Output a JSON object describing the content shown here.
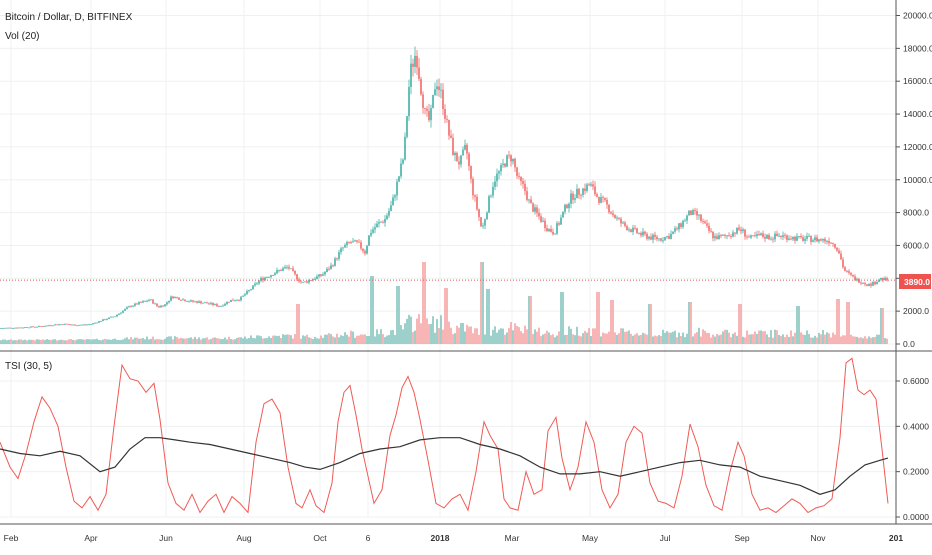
{
  "chart_data": [
    {
      "type": "candlestick",
      "title": "Bitcoin / Dollar, D, BITFINEX",
      "indicator_label": "Vol (20)",
      "y_ticks": [
        "20000.0",
        "18000.0",
        "16000.0",
        "14000.0",
        "12000.0",
        "10000.0",
        "8000.0",
        "6000.0",
        "4000.0",
        "2000.0",
        "0.0"
      ],
      "ylim": [
        0,
        20000
      ],
      "last_price": "3890.0",
      "colors": {
        "up": "#26a69a",
        "down": "#ef5350",
        "up_vol": "#85c5be",
        "down_vol": "#f5a3a3",
        "price_line": "#ef5350"
      },
      "close_path": [
        [
          0,
          965
        ],
        [
          20,
          1000
        ],
        [
          40,
          1070
        ],
        [
          55,
          1180
        ],
        [
          65,
          1210
        ],
        [
          75,
          1150
        ],
        [
          90,
          1190
        ],
        [
          100,
          1400
        ],
        [
          115,
          1700
        ],
        [
          130,
          2300
        ],
        [
          140,
          2500
        ],
        [
          150,
          2700
        ],
        [
          158,
          2250
        ],
        [
          165,
          2400
        ],
        [
          172,
          2900
        ],
        [
          180,
          2750
        ],
        [
          190,
          2600
        ],
        [
          200,
          2550
        ],
        [
          210,
          2450
        ],
        [
          220,
          2300
        ],
        [
          230,
          2650
        ],
        [
          240,
          2750
        ],
        [
          250,
          3300
        ],
        [
          260,
          3900
        ],
        [
          270,
          4200
        ],
        [
          280,
          4500
        ],
        [
          288,
          4700
        ],
        [
          296,
          4100
        ],
        [
          302,
          3700
        ],
        [
          312,
          3950
        ],
        [
          322,
          4200
        ],
        [
          332,
          4800
        ],
        [
          342,
          5800
        ],
        [
          350,
          6200
        ],
        [
          358,
          6100
        ],
        [
          365,
          5600
        ],
        [
          370,
          6800
        ],
        [
          378,
          7300
        ],
        [
          385,
          7600
        ],
        [
          392,
          8500
        ],
        [
          398,
          10000
        ],
        [
          404,
          11500
        ],
        [
          410,
          16500
        ],
        [
          416,
          17800
        ],
        [
          420,
          16000
        ],
        [
          425,
          14000
        ],
        [
          430,
          13500
        ],
        [
          436,
          16200
        ],
        [
          442,
          15000
        ],
        [
          448,
          13000
        ],
        [
          454,
          11500
        ],
        [
          460,
          11000
        ],
        [
          466,
          12000
        ],
        [
          472,
          9500
        ],
        [
          478,
          8000
        ],
        [
          482,
          6900
        ],
        [
          488,
          8500
        ],
        [
          494,
          10000
        ],
        [
          500,
          10500
        ],
        [
          506,
          11200
        ],
        [
          512,
          11400
        ],
        [
          518,
          10000
        ],
        [
          524,
          9500
        ],
        [
          530,
          8500
        ],
        [
          536,
          8000
        ],
        [
          542,
          7500
        ],
        [
          548,
          7000
        ],
        [
          554,
          6800
        ],
        [
          560,
          7500
        ],
        [
          566,
          8400
        ],
        [
          572,
          9000
        ],
        [
          580,
          9300
        ],
        [
          590,
          9700
        ],
        [
          598,
          8900
        ],
        [
          606,
          8500
        ],
        [
          614,
          7800
        ],
        [
          622,
          7300
        ],
        [
          630,
          7000
        ],
        [
          640,
          6700
        ],
        [
          650,
          6500
        ],
        [
          660,
          6400
        ],
        [
          670,
          6600
        ],
        [
          680,
          7200
        ],
        [
          690,
          8000
        ],
        [
          698,
          7800
        ],
        [
          706,
          7100
        ],
        [
          714,
          6500
        ],
        [
          722,
          6500
        ],
        [
          730,
          6700
        ],
        [
          740,
          7000
        ],
        [
          750,
          6400
        ],
        [
          760,
          6600
        ],
        [
          770,
          6500
        ],
        [
          780,
          6600
        ],
        [
          790,
          6500
        ],
        [
          800,
          6400
        ],
        [
          810,
          6400
        ],
        [
          820,
          6350
        ],
        [
          830,
          6300
        ],
        [
          838,
          5800
        ],
        [
          844,
          4500
        ],
        [
          850,
          4200
        ],
        [
          856,
          3900
        ],
        [
          862,
          3800
        ],
        [
          868,
          3600
        ],
        [
          874,
          3700
        ],
        [
          880,
          4000
        ],
        [
          886,
          3890
        ]
      ],
      "volume_spikes": [
        [
          298,
          40
        ],
        [
          372,
          68
        ],
        [
          398,
          58
        ],
        [
          424,
          82
        ],
        [
          446,
          56
        ],
        [
          482,
          82
        ],
        [
          488,
          55
        ],
        [
          530,
          48
        ],
        [
          562,
          52
        ],
        [
          598,
          52
        ],
        [
          612,
          44
        ],
        [
          650,
          40
        ],
        [
          690,
          42
        ],
        [
          740,
          40
        ],
        [
          798,
          38
        ],
        [
          838,
          45
        ],
        [
          848,
          42
        ],
        [
          882,
          36
        ]
      ]
    },
    {
      "type": "line",
      "title": "TSI (30, 5)",
      "y_ticks": [
        "0.6000",
        "0.4000",
        "0.2000",
        "0.0000"
      ],
      "ylim": [
        0,
        0.7
      ],
      "series": [
        {
          "color": "#f05a55",
          "values": [
            [
              0,
              0.33
            ],
            [
              10,
              0.22
            ],
            [
              18,
              0.17
            ],
            [
              26,
              0.28
            ],
            [
              34,
              0.42
            ],
            [
              42,
              0.53
            ],
            [
              50,
              0.48
            ],
            [
              58,
              0.4
            ],
            [
              66,
              0.22
            ],
            [
              74,
              0.07
            ],
            [
              82,
              0.04
            ],
            [
              90,
              0.09
            ],
            [
              98,
              0.03
            ],
            [
              106,
              0.1
            ],
            [
              114,
              0.4
            ],
            [
              122,
              0.67
            ],
            [
              130,
              0.61
            ],
            [
              138,
              0.6
            ],
            [
              146,
              0.55
            ],
            [
              154,
              0.59
            ],
            [
              160,
              0.43
            ],
            [
              168,
              0.15
            ],
            [
              176,
              0.06
            ],
            [
              184,
              0.03
            ],
            [
              192,
              0.1
            ],
            [
              200,
              0.02
            ],
            [
              208,
              0.07
            ],
            [
              216,
              0.1
            ],
            [
              224,
              0.02
            ],
            [
              232,
              0.09
            ],
            [
              240,
              0.06
            ],
            [
              248,
              0.02
            ],
            [
              256,
              0.33
            ],
            [
              264,
              0.5
            ],
            [
              272,
              0.52
            ],
            [
              280,
              0.46
            ],
            [
              288,
              0.22
            ],
            [
              296,
              0.06
            ],
            [
              302,
              0.04
            ],
            [
              310,
              0.12
            ],
            [
              316,
              0.05
            ],
            [
              324,
              0.02
            ],
            [
              332,
              0.15
            ],
            [
              338,
              0.42
            ],
            [
              344,
              0.55
            ],
            [
              350,
              0.58
            ],
            [
              356,
              0.45
            ],
            [
              362,
              0.3
            ],
            [
              368,
              0.18
            ],
            [
              374,
              0.06
            ],
            [
              382,
              0.12
            ],
            [
              390,
              0.36
            ],
            [
              396,
              0.45
            ],
            [
              402,
              0.57
            ],
            [
              408,
              0.62
            ],
            [
              414,
              0.55
            ],
            [
              420,
              0.43
            ],
            [
              428,
              0.25
            ],
            [
              436,
              0.06
            ],
            [
              444,
              0.04
            ],
            [
              452,
              0.08
            ],
            [
              460,
              0.1
            ],
            [
              468,
              0.03
            ],
            [
              476,
              0.2
            ],
            [
              484,
              0.42
            ],
            [
              490,
              0.36
            ],
            [
              498,
              0.3
            ],
            [
              504,
              0.08
            ],
            [
              510,
              0.04
            ],
            [
              518,
              0.03
            ],
            [
              526,
              0.2
            ],
            [
              534,
              0.1
            ],
            [
              542,
              0.12
            ],
            [
              548,
              0.38
            ],
            [
              556,
              0.44
            ],
            [
              562,
              0.26
            ],
            [
              570,
              0.12
            ],
            [
              578,
              0.22
            ],
            [
              586,
              0.42
            ],
            [
              594,
              0.33
            ],
            [
              602,
              0.12
            ],
            [
              610,
              0.04
            ],
            [
              618,
              0.1
            ],
            [
              626,
              0.33
            ],
            [
              634,
              0.4
            ],
            [
              642,
              0.37
            ],
            [
              650,
              0.15
            ],
            [
              658,
              0.07
            ],
            [
              666,
              0.06
            ],
            [
              674,
              0.04
            ],
            [
              682,
              0.18
            ],
            [
              690,
              0.41
            ],
            [
              698,
              0.31
            ],
            [
              706,
              0.14
            ],
            [
              714,
              0.05
            ],
            [
              722,
              0.03
            ],
            [
              730,
              0.2
            ],
            [
              738,
              0.33
            ],
            [
              744,
              0.27
            ],
            [
              752,
              0.1
            ],
            [
              760,
              0.03
            ],
            [
              768,
              0.04
            ],
            [
              776,
              0.02
            ],
            [
              784,
              0.05
            ],
            [
              792,
              0.08
            ],
            [
              800,
              0.06
            ],
            [
              808,
              0.02
            ],
            [
              816,
              0.04
            ],
            [
              824,
              0.05
            ],
            [
              832,
              0.08
            ],
            [
              840,
              0.35
            ],
            [
              846,
              0.68
            ],
            [
              852,
              0.7
            ],
            [
              858,
              0.56
            ],
            [
              864,
              0.54
            ],
            [
              870,
              0.56
            ],
            [
              876,
              0.52
            ],
            [
              882,
              0.3
            ],
            [
              888,
              0.06
            ]
          ]
        },
        {
          "color": "#333333",
          "values": [
            [
              0,
              0.3
            ],
            [
              20,
              0.28
            ],
            [
              40,
              0.27
            ],
            [
              60,
              0.29
            ],
            [
              80,
              0.27
            ],
            [
              100,
              0.2
            ],
            [
              115,
              0.22
            ],
            [
              130,
              0.3
            ],
            [
              145,
              0.35
            ],
            [
              160,
              0.35
            ],
            [
              175,
              0.34
            ],
            [
              190,
              0.33
            ],
            [
              210,
              0.32
            ],
            [
              230,
              0.3
            ],
            [
              250,
              0.28
            ],
            [
              270,
              0.26
            ],
            [
              290,
              0.24
            ],
            [
              305,
              0.22
            ],
            [
              320,
              0.21
            ],
            [
              340,
              0.24
            ],
            [
              360,
              0.28
            ],
            [
              380,
              0.3
            ],
            [
              400,
              0.31
            ],
            [
              420,
              0.34
            ],
            [
              440,
              0.35
            ],
            [
              460,
              0.35
            ],
            [
              480,
              0.32
            ],
            [
              500,
              0.3
            ],
            [
              520,
              0.27
            ],
            [
              540,
              0.22
            ],
            [
              560,
              0.19
            ],
            [
              580,
              0.19
            ],
            [
              600,
              0.2
            ],
            [
              620,
              0.18
            ],
            [
              640,
              0.2
            ],
            [
              660,
              0.22
            ],
            [
              680,
              0.24
            ],
            [
              700,
              0.25
            ],
            [
              720,
              0.23
            ],
            [
              740,
              0.22
            ],
            [
              760,
              0.18
            ],
            [
              780,
              0.16
            ],
            [
              800,
              0.14
            ],
            [
              820,
              0.1
            ],
            [
              835,
              0.12
            ],
            [
              850,
              0.18
            ],
            [
              865,
              0.23
            ],
            [
              880,
              0.25
            ],
            [
              888,
              0.26
            ]
          ]
        }
      ]
    }
  ],
  "x_axis": [
    {
      "label": "Feb",
      "bold": false
    },
    {
      "label": "Apr",
      "bold": false
    },
    {
      "label": "Jun",
      "bold": false
    },
    {
      "label": "Aug",
      "bold": false
    },
    {
      "label": "Oct",
      "bold": false
    },
    {
      "label": "6",
      "bold": false
    },
    {
      "label": "2018",
      "bold": true
    },
    {
      "label": "Mar",
      "bold": false
    },
    {
      "label": "May",
      "bold": false
    },
    {
      "label": "Jul",
      "bold": false
    },
    {
      "label": "Sep",
      "bold": false
    },
    {
      "label": "Nov",
      "bold": false
    },
    {
      "label": "201",
      "bold": true
    }
  ]
}
